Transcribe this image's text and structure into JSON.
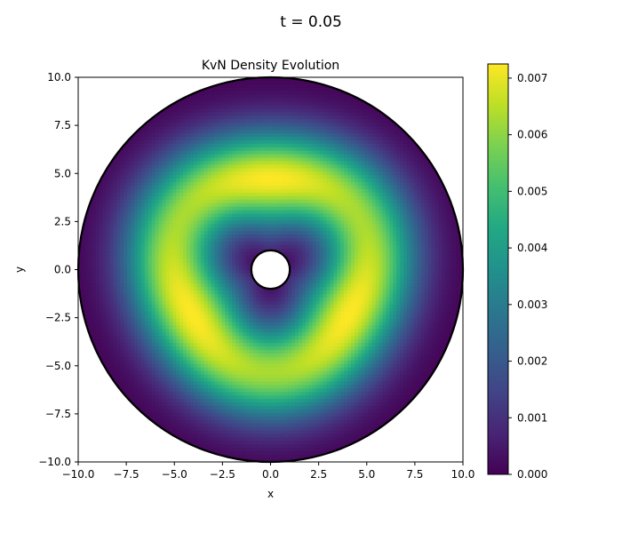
{
  "figure": {
    "suptitle": "t = 0.05"
  },
  "chart_data": {
    "type": "heatmap",
    "title": "KvN Density Evolution",
    "xlabel": "x",
    "ylabel": "y",
    "xlim": [
      -10,
      10
    ],
    "ylim": [
      -10,
      10
    ],
    "x_ticks": [
      -10.0,
      -7.5,
      -5.0,
      -2.5,
      0.0,
      2.5,
      5.0,
      7.5,
      10.0
    ],
    "y_ticks": [
      -10.0,
      -7.5,
      -5.0,
      -2.5,
      0.0,
      2.5,
      5.0,
      7.5,
      10.0
    ],
    "x_tick_labels": [
      "−10.0",
      "−7.5",
      "−5.0",
      "−2.5",
      "0.0",
      "2.5",
      "5.0",
      "7.5",
      "10.0"
    ],
    "y_tick_labels": [
      "−10.0",
      "−7.5",
      "−5.0",
      "−2.5",
      "0.0",
      "2.5",
      "5.0",
      "7.5",
      "10.0"
    ],
    "colormap": "viridis",
    "colorbar": {
      "min": 0.0,
      "max": 0.00725,
      "ticks": [
        0.0,
        0.001,
        0.002,
        0.003,
        0.004,
        0.005,
        0.006,
        0.007
      ],
      "tick_labels": [
        "0.000",
        "0.001",
        "0.002",
        "0.003",
        "0.004",
        "0.005",
        "0.006",
        "0.007"
      ]
    },
    "domain": {
      "shape": "annulus",
      "center": [
        0,
        0
      ],
      "outer_radius": 10,
      "inner_radius": 1,
      "boundary_color": "#000000"
    },
    "density": {
      "form": "triangular ring",
      "ring_mean_radius": 5.0,
      "ring_width": 1.8,
      "peak_value": 0.00725,
      "hot_spots_angle_deg": [
        90,
        210,
        330
      ],
      "three_fold_modulation": 0.13
    },
    "grid": false
  }
}
